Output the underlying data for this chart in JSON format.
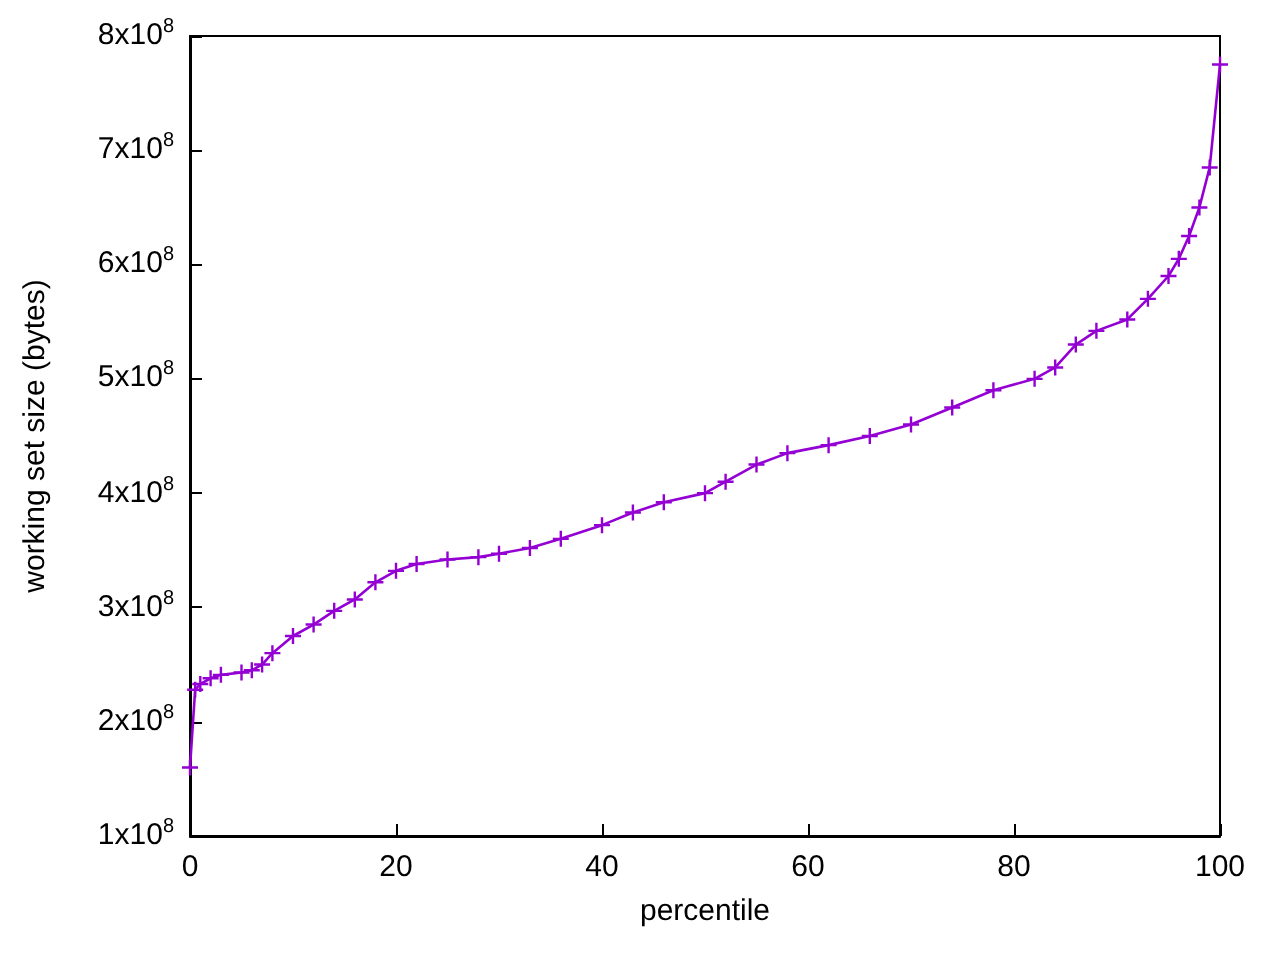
{
  "chart_data": {
    "type": "line",
    "xlabel": "percentile",
    "ylabel": "working set size (bytes)",
    "x": [
      0,
      0.5,
      1,
      2,
      3,
      5,
      6,
      7,
      8,
      10,
      12,
      14,
      16,
      18,
      20,
      22,
      25,
      28,
      30,
      33,
      36,
      40,
      43,
      46,
      50,
      52,
      55,
      58,
      62,
      66,
      70,
      74,
      78,
      82,
      84,
      86,
      88,
      91,
      93,
      95,
      96,
      97,
      98,
      99,
      100
    ],
    "series": [
      {
        "color": "#9400d3",
        "values": [
          160000000,
          228000000,
          233000000,
          238000000,
          241000000,
          243000000,
          245000000,
          250000000,
          260000000,
          275000000,
          285000000,
          297000000,
          307000000,
          322000000,
          332000000,
          338000000,
          342000000,
          344000000,
          347000000,
          352000000,
          360000000,
          372000000,
          383000000,
          392000000,
          400000000,
          410000000,
          425000000,
          435000000,
          442000000,
          450000000,
          460000000,
          475000000,
          490000000,
          500000000,
          510000000,
          530000000,
          542000000,
          552000000,
          570000000,
          590000000,
          605000000,
          625000000,
          650000000,
          685000000,
          775000000
        ]
      }
    ],
    "xlim": [
      0,
      100
    ],
    "xticks": [
      0,
      20,
      40,
      60,
      80,
      100
    ],
    "ylim": [
      100000000,
      800000000
    ],
    "yticks": [
      {
        "value": 100000000,
        "label": "1x10$^{8}$"
      },
      {
        "value": 200000000,
        "label": "2x10$^{8}$"
      },
      {
        "value": 300000000,
        "label": "3x10$^{8}$"
      },
      {
        "value": 400000000,
        "label": "4x10$^{8}$"
      },
      {
        "value": 500000000,
        "label": "5x10$^{8}$"
      },
      {
        "value": 600000000,
        "label": "6x10$^{8}$"
      },
      {
        "value": 700000000,
        "label": "7x10$^{8}$"
      },
      {
        "value": 800000000,
        "label": "8x10$^{8}$"
      }
    ],
    "marker": "cross",
    "line_style": "solid",
    "grid": false
  }
}
